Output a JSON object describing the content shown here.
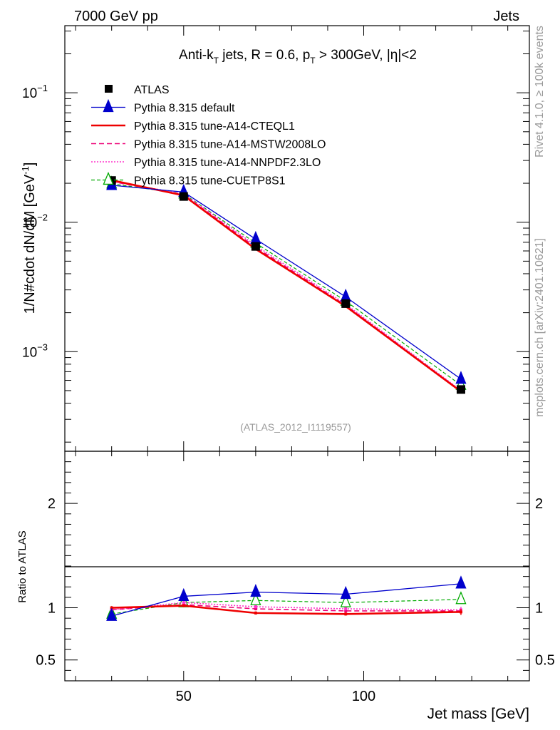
{
  "header": {
    "energy_label": "7000 GeV pp",
    "process_label": "Jets",
    "watermark_label": "(ATLAS_2012_I1119557)",
    "side_rivet": "Rivet 4.1.0, ≥ 100k events",
    "side_mcplots": "mcplots.cern.ch [arXiv:2401.10621]"
  },
  "chart_data": {
    "type": "line",
    "title": "Anti-k_T jets, R = 0.6, p_T > 300GeV, |η|<2",
    "title_parts": {
      "a": "Anti-k",
      "a_sub": "T",
      "b": " jets, R = 0.6, p",
      "b_sub": "T",
      "c": " > 300GeV, |η|<2"
    },
    "xlabel": "Jet mass [GeV]",
    "ylabel": "1/N#cdot dN/dM [GeV",
    "ylabel_sup": "-1",
    "ylabel_close": "]",
    "ratio_ylabel": "Ratio to ATLAS",
    "xlim": [
      17,
      146
    ],
    "ylim": [
      0.00017,
      0.33
    ],
    "ratio_ylim": [
      0.3,
      2.5
    ],
    "x_ticks": [
      {
        "v": 50,
        "label": "50"
      },
      {
        "v": 100,
        "label": "100"
      }
    ],
    "y_ticks": [
      {
        "v": 0.1,
        "b": "10",
        "e": "−1"
      },
      {
        "v": 0.01,
        "b": "10",
        "e": "−2"
      },
      {
        "v": 0.001,
        "b": "10",
        "e": "−3"
      }
    ],
    "ratio_ticks": [
      {
        "v": 0.5,
        "label": "0.5"
      },
      {
        "v": 1,
        "label": "1"
      },
      {
        "v": 2,
        "label": "2"
      }
    ],
    "x": [
      30,
      50,
      70,
      95,
      127
    ],
    "data": {
      "name": "ATLAS",
      "values": [
        0.021,
        0.0158,
        0.0065,
        0.00235,
        0.00051
      ]
    },
    "series": [
      {
        "name": "Pythia 8.315 default",
        "color": "#0000cc",
        "dash": "",
        "width": 1.3,
        "marker": "triangle",
        "values": [
          0.0193,
          0.0171,
          0.0074,
          0.00265,
          0.000614
        ],
        "ratio": [
          0.92,
          1.11,
          1.15,
          1.13,
          1.23
        ],
        "ratio_err": [
          0.02,
          0.02,
          0.02,
          0.02,
          0.035
        ]
      },
      {
        "name": "Pythia 8.315 tune-A14-CTEQL1",
        "color": "#ee0000",
        "dash": "",
        "width": 2.6,
        "marker": "square",
        "values": [
          0.0211,
          0.0161,
          0.0062,
          0.00224,
          0.000492
        ],
        "ratio": [
          1.0,
          1.02,
          0.95,
          0.94,
          0.96
        ],
        "ratio_err": [
          0.015,
          0.015,
          0.015,
          0.015,
          0.03
        ]
      },
      {
        "name": "Pythia 8.315 tune-A14-MSTW2008LO",
        "color": "#ee0077",
        "dash": "7,4",
        "width": 1.6,
        "marker": "square",
        "values": [
          0.0206,
          0.0163,
          0.0064,
          0.00228,
          0.000497
        ],
        "ratio": [
          0.98,
          1.03,
          0.99,
          0.97,
          0.97
        ],
        "ratio_err": [
          0.015,
          0.015,
          0.015,
          0.015,
          0.03
        ]
      },
      {
        "name": "Pythia 8.315 tune-A14-NNPDF2.3LO",
        "color": "#ff33cc",
        "dash": "2,2",
        "width": 1.6,
        "marker": "square",
        "values": [
          0.0206,
          0.0166,
          0.0066,
          0.00233,
          0.000502
        ],
        "ratio": [
          0.98,
          1.05,
          1.01,
          0.99,
          0.98
        ],
        "ratio_err": [
          0.015,
          0.015,
          0.015,
          0.015,
          0.03
        ]
      },
      {
        "name": "Pythia 8.315 tune-CUETP8S1",
        "color": "#00aa00",
        "dash": "5,3",
        "width": 1.2,
        "marker": "open-triangle",
        "values": [
          0.0198,
          0.0166,
          0.0069,
          0.00246,
          0.000551
        ],
        "ratio": [
          0.94,
          1.05,
          1.07,
          1.05,
          1.08
        ],
        "ratio_err": [
          0.015,
          0.015,
          0.015,
          0.015,
          0.035
        ]
      }
    ]
  }
}
